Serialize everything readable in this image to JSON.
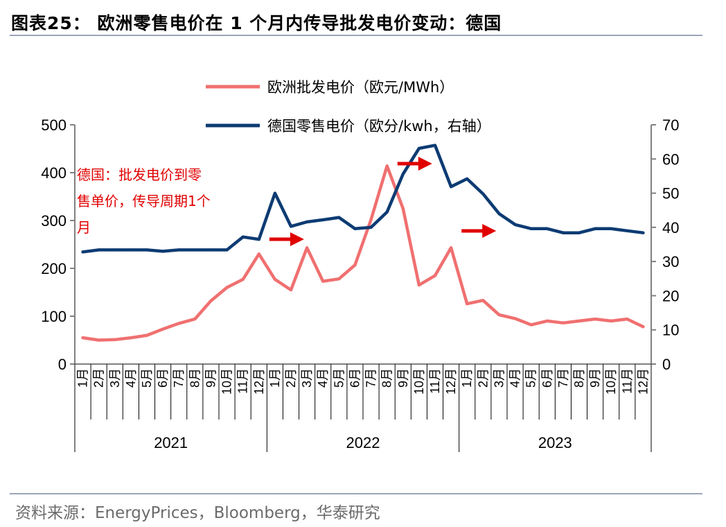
{
  "header": {
    "title": "图表25： 欧洲零售电价在 1 个月内传导批发电价变动：德国"
  },
  "footer": {
    "source": "资料来源：EnergyPrices，Bloomberg，华泰研究"
  },
  "colors": {
    "wholesale": "#f07070",
    "retail": "#0d3b73",
    "annotation": "#e00000",
    "axis": "#808080",
    "rule": "#9aa6b8"
  },
  "annotation": {
    "lines": [
      "德国：批发电价到零",
      "售单价，传导周期1个",
      "月"
    ]
  },
  "chart_data": {
    "type": "line",
    "title": "",
    "xlabel": "",
    "ylabel": "",
    "y_left": {
      "min": 0,
      "max": 500,
      "ticks": [
        0,
        100,
        200,
        300,
        400,
        500
      ]
    },
    "y_right": {
      "min": 0,
      "max": 70,
      "ticks": [
        0,
        10,
        20,
        30,
        40,
        50,
        60,
        70
      ]
    },
    "grid": false,
    "legend_position": "top",
    "months": [
      "1月",
      "2月",
      "3月",
      "4月",
      "5月",
      "6月",
      "7月",
      "8月",
      "9月",
      "10月",
      "11月",
      "12月",
      "1月",
      "2月",
      "3月",
      "4月",
      "5月",
      "6月",
      "7月",
      "8月",
      "9月",
      "10月",
      "11月",
      "12月",
      "1月",
      "2月",
      "3月",
      "4月",
      "5月",
      "6月",
      "7月",
      "8月",
      "9月",
      "10月",
      "11月",
      "12月"
    ],
    "years": [
      "2021",
      "2022",
      "2023"
    ],
    "series": [
      {
        "name": "欧洲批发电价（欧元/MWh）",
        "axis": "left",
        "color": "#f07070",
        "values": [
          55,
          50,
          51,
          55,
          60,
          73,
          85,
          94,
          132,
          160,
          177,
          230,
          177,
          155,
          243,
          173,
          178,
          207,
          302,
          414,
          325,
          165,
          185,
          243,
          126,
          133,
          103,
          95,
          82,
          90,
          86,
          90,
          94,
          90,
          94,
          78
        ]
      },
      {
        "name": "德国零售电价（欧分/kwh，右轴）",
        "axis": "right",
        "color": "#0d3b73",
        "values": [
          32.8,
          33.4,
          33.4,
          33.4,
          33.4,
          33.0,
          33.4,
          33.4,
          33.4,
          33.4,
          37.2,
          36.5,
          50.0,
          40.3,
          41.6,
          42.2,
          42.9,
          39.6,
          40.0,
          44.5,
          55.6,
          63.1,
          64.0,
          51.9,
          54.2,
          49.8,
          44.0,
          40.8,
          39.6,
          39.6,
          38.4,
          38.4,
          39.6,
          39.6,
          39.0,
          38.4
        ]
      }
    ],
    "arrows": [
      {
        "after_month_index": 12
      },
      {
        "after_month_index": 20
      },
      {
        "after_month_index": 24
      }
    ]
  }
}
